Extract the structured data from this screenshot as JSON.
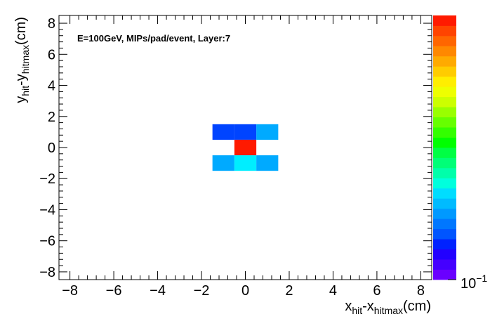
{
  "chart_data": {
    "type": "heatmap",
    "title": "",
    "annotation": "E=100GeV, MIPs/pad/event, Layer:7",
    "xlabel": {
      "main": "x",
      "sub": "hit",
      "mid": "-x",
      "sub2": "hitmax",
      "end": "(cm)"
    },
    "ylabel": {
      "main": "y",
      "sub": "hit",
      "mid": "-y",
      "sub2": "hitmax",
      "end": "(cm)"
    },
    "xlim": [
      -8.5,
      8.5
    ],
    "ylim": [
      -8.5,
      8.5
    ],
    "x_ticks": [
      -8,
      -6,
      -4,
      -2,
      0,
      2,
      4,
      6,
      8
    ],
    "x_tick_labels": [
      "−8",
      "−6",
      "−4",
      "−2",
      "0",
      "2",
      "4",
      "6",
      "8"
    ],
    "y_ticks": [
      -8,
      -6,
      -4,
      -2,
      0,
      2,
      4,
      6,
      8
    ],
    "y_tick_labels": [
      "−8",
      "−6",
      "−4",
      "−2",
      "0",
      "2",
      "4",
      "6",
      "8"
    ],
    "bin_size": 1,
    "cells": [
      {
        "x": -1,
        "y": 1,
        "color": "#0044ff"
      },
      {
        "x": 0,
        "y": 1,
        "color": "#0044ff"
      },
      {
        "x": 1,
        "y": 1,
        "color": "#00aaff"
      },
      {
        "x": 0,
        "y": 0,
        "color": "#ff1a00"
      },
      {
        "x": -1,
        "y": -1,
        "color": "#00aaff"
      },
      {
        "x": 0,
        "y": -1,
        "color": "#00eeff"
      },
      {
        "x": 1,
        "y": -1,
        "color": "#00aaff"
      }
    ],
    "colorbar": {
      "label_base": "10",
      "label_exp": "−1",
      "colors": [
        "#6a00ff",
        "#4400ff",
        "#2200ff",
        "#0022ff",
        "#0055ff",
        "#0077ff",
        "#0099ff",
        "#00bbff",
        "#00ddff",
        "#00ffdd",
        "#00ffaa",
        "#00ff77",
        "#00ff44",
        "#00ff00",
        "#33ff00",
        "#66ff00",
        "#99ff00",
        "#ccff00",
        "#eeff00",
        "#ffee00",
        "#ffcc00",
        "#ffaa00",
        "#ff8800",
        "#ff6600",
        "#ff4400",
        "#ff1a00"
      ]
    }
  }
}
